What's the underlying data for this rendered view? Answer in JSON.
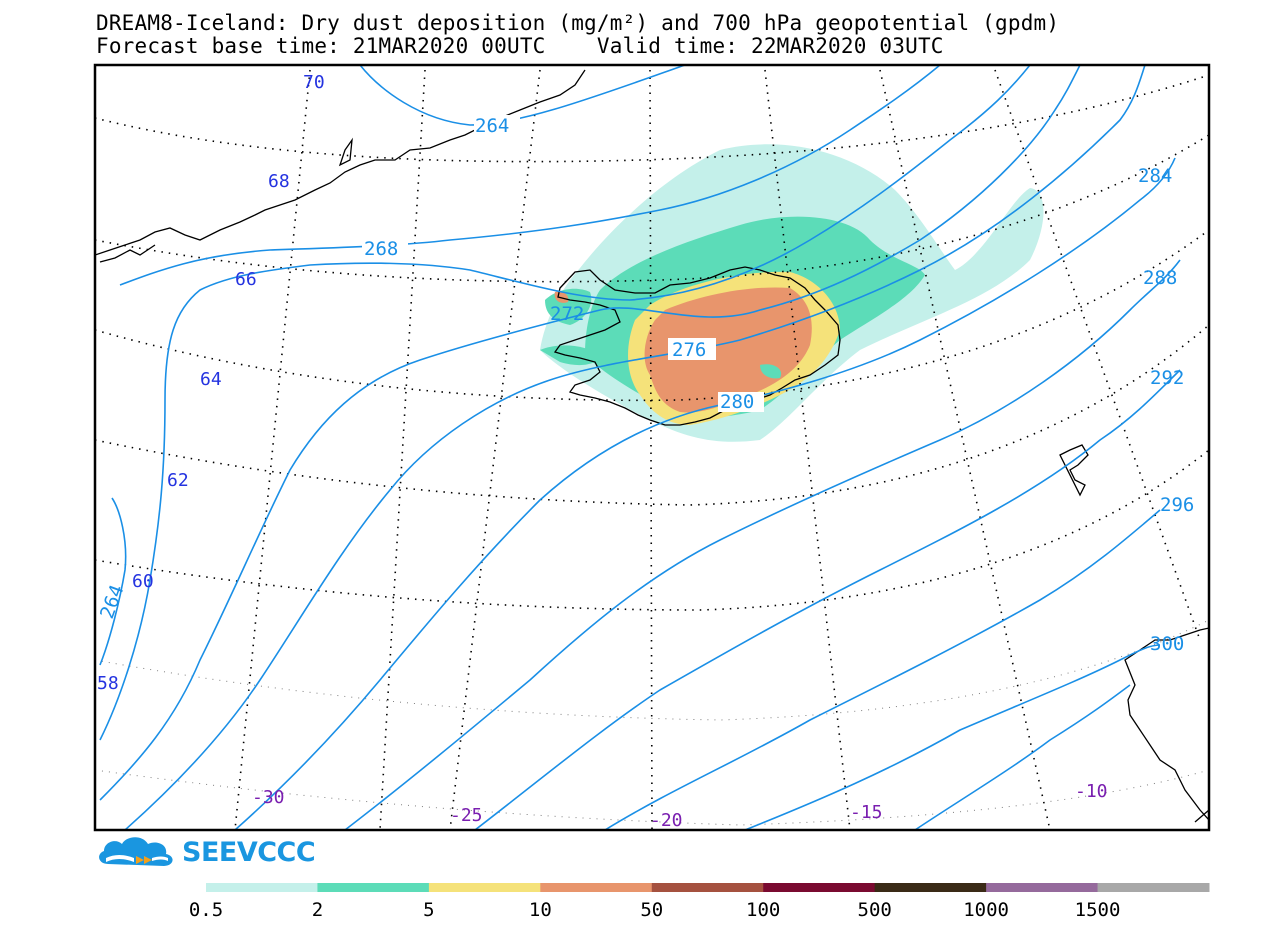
{
  "title": {
    "line1": "DREAM8-Iceland: Dry dust deposition (mg/m²) and 700 hPa geopotential (gpdm)",
    "line2": "Forecast base time: 21MAR2020 00UTC    Valid time: 22MAR2020 03UTC"
  },
  "logo": {
    "text": "SEEVCCC",
    "icon": "cloud-icon"
  },
  "contours": [
    {
      "label": "264"
    },
    {
      "label": "268"
    },
    {
      "label": "272"
    },
    {
      "label": "276"
    },
    {
      "label": "280"
    },
    {
      "label": "284"
    },
    {
      "label": "288"
    },
    {
      "label": "292"
    },
    {
      "label": "296"
    },
    {
      "label": "300"
    },
    {
      "label": "264"
    }
  ],
  "latitudes": [
    "70",
    "68",
    "66",
    "64",
    "62",
    "60",
    "58"
  ],
  "longitudes": [
    "-30",
    "-25",
    "-20",
    "-15",
    "-10"
  ],
  "legend": {
    "labels": [
      "0.5",
      "2",
      "5",
      "10",
      "50",
      "100",
      "500",
      "1000",
      "1500"
    ],
    "colors": [
      "#c4f0ea",
      "#5cdcb8",
      "#f5e27a",
      "#e8956c",
      "#a5513f",
      "#7a0a30",
      "#3a2a16",
      "#956a9c",
      "#a8a8a8"
    ]
  },
  "colors": {
    "contour": "#1a8fe6",
    "lat_label": "#2433e0",
    "lon_label": "#7a1fb0",
    "frame": "#000000"
  }
}
